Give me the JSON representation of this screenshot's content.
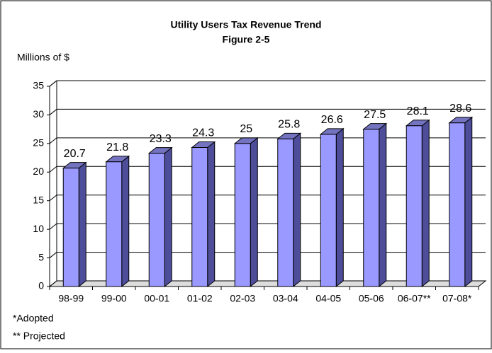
{
  "chart_data": {
    "type": "bar3d",
    "title": "Utility Users Tax Revenue Trend",
    "subtitle": "Figure 2-5",
    "y_label": "Millions of $",
    "categories": [
      "98-99",
      "99-00",
      "00-01",
      "01-02",
      "02-03",
      "03-04",
      "04-05",
      "05-06",
      "06-07**",
      "07-08*"
    ],
    "values": [
      20.7,
      21.8,
      23.3,
      24.3,
      25,
      25.8,
      26.6,
      27.5,
      28.1,
      28.6
    ],
    "color": "#9999ff",
    "ylim": [
      0,
      35
    ],
    "yticks": [
      0,
      5,
      10,
      15,
      20,
      25,
      30,
      35
    ],
    "grid": true,
    "notes": [
      "*Adopted",
      "** Projected"
    ]
  }
}
